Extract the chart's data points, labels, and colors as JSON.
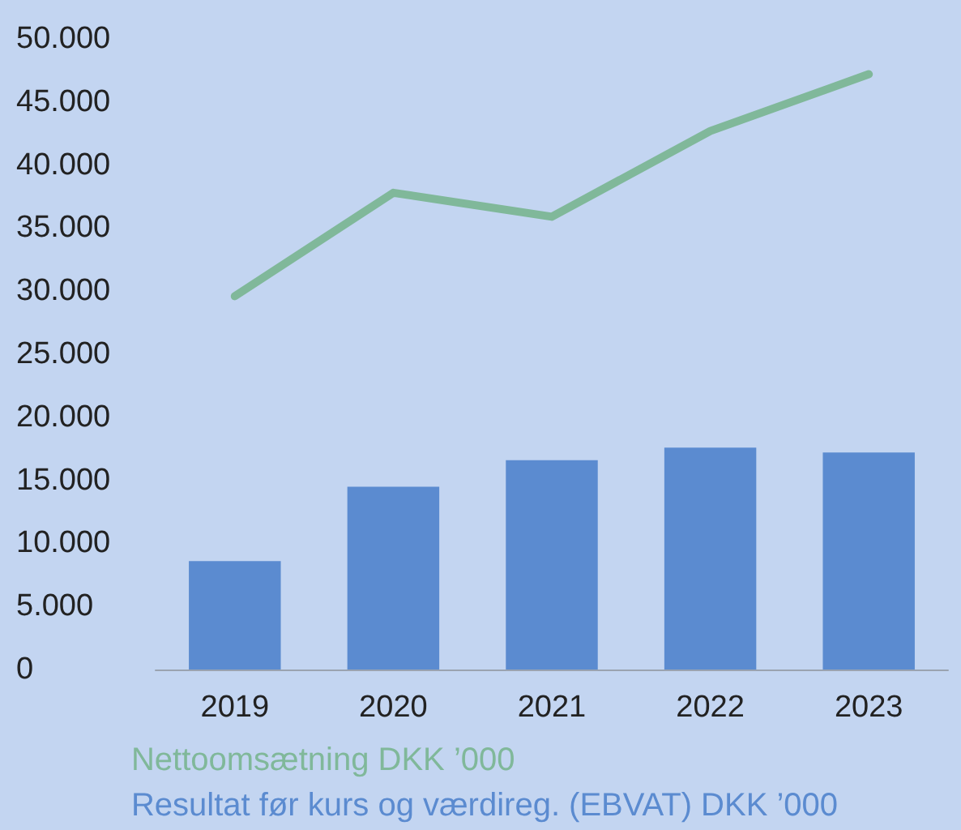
{
  "chart_data": {
    "type": "bar",
    "categories": [
      "2019",
      "2020",
      "2021",
      "2022",
      "2023"
    ],
    "series": [
      {
        "name": "Nettoomsætning DKK ’000",
        "type": "line",
        "color": "#80b89a",
        "values": [
          29600,
          37800,
          35900,
          42700,
          47200
        ]
      },
      {
        "name": "Resultat før kurs og værdireg. (EBVAT) DKK ’000",
        "color": "#5b8bd0",
        "values": [
          8600,
          14500,
          16600,
          17600,
          17200
        ]
      }
    ],
    "ylim": [
      0,
      50000
    ],
    "yticks": [
      0,
      {
        "value": 5000,
        "label": "5.000"
      },
      {
        "value": 10000,
        "label": "10.000"
      },
      {
        "value": 15000,
        "label": "15.000"
      },
      {
        "value": 20000,
        "label": "20.000"
      },
      {
        "value": 25000,
        "label": "25.000"
      },
      {
        "value": 30000,
        "label": "30.000"
      },
      {
        "value": 35000,
        "label": "35.000"
      },
      {
        "value": 40000,
        "label": "40.000"
      },
      {
        "value": 45000,
        "label": "45.000"
      },
      {
        "value": 50000,
        "label": "50.000"
      }
    ],
    "grid": false,
    "legend": "bottom",
    "marker": "none"
  }
}
